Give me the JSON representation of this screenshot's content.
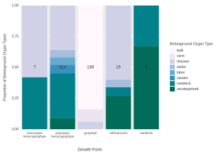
{
  "chart_data": {
    "type": "stacked_bar",
    "xlabel": "Growth Form",
    "ylabel": "Proportion of Belowground Organ Types",
    "legend_title": "Belowground Organ Type",
    "categories": [
      "monocarpic hemicryptophyte",
      "polycarpic hemicryptophyte",
      "geophyte",
      "suffrutescent",
      "subshrub"
    ],
    "counts": [
      7,
      514,
      189,
      15,
      9
    ],
    "ylim": [
      0,
      1
    ],
    "yticks": [
      {
        "value": 0,
        "label": "0.00"
      },
      {
        "value": 0.25,
        "label": "0.25"
      },
      {
        "value": 0.5,
        "label": "0.50"
      },
      {
        "value": 0.75,
        "label": "0.75"
      },
      {
        "value": 1,
        "label": "1.00"
      }
    ],
    "series": [
      {
        "name": "uncategorized",
        "color": "#016c59",
        "values": [
          0,
          0.09,
          0,
          0.27,
          0.67
        ]
      },
      {
        "name": "rootstock",
        "color": "#02818a",
        "values": [
          0.42,
          0.36,
          0,
          0.07,
          0.33
        ]
      },
      {
        "name": "caudex",
        "color": "#3690c0",
        "values": [
          0,
          0.07,
          0,
          0,
          0
        ]
      },
      {
        "name": "tuber",
        "color": "#67a9cf",
        "values": [
          0,
          0.06,
          0,
          0,
          0
        ]
      },
      {
        "name": "stolon",
        "color": "#a6bddb",
        "values": [
          0,
          0.06,
          0,
          0.06,
          0
        ]
      },
      {
        "name": "rhizome",
        "color": "#d0d1e6",
        "values": [
          0.58,
          0.36,
          0.06,
          0.6,
          0
        ]
      },
      {
        "name": "corm",
        "color": "#ece2f0",
        "values": [
          0,
          0,
          0.1,
          0,
          0
        ]
      },
      {
        "name": "bulb",
        "color": "#fff7fb",
        "values": [
          0,
          0,
          0.84,
          0,
          0
        ]
      }
    ],
    "grid": true
  }
}
